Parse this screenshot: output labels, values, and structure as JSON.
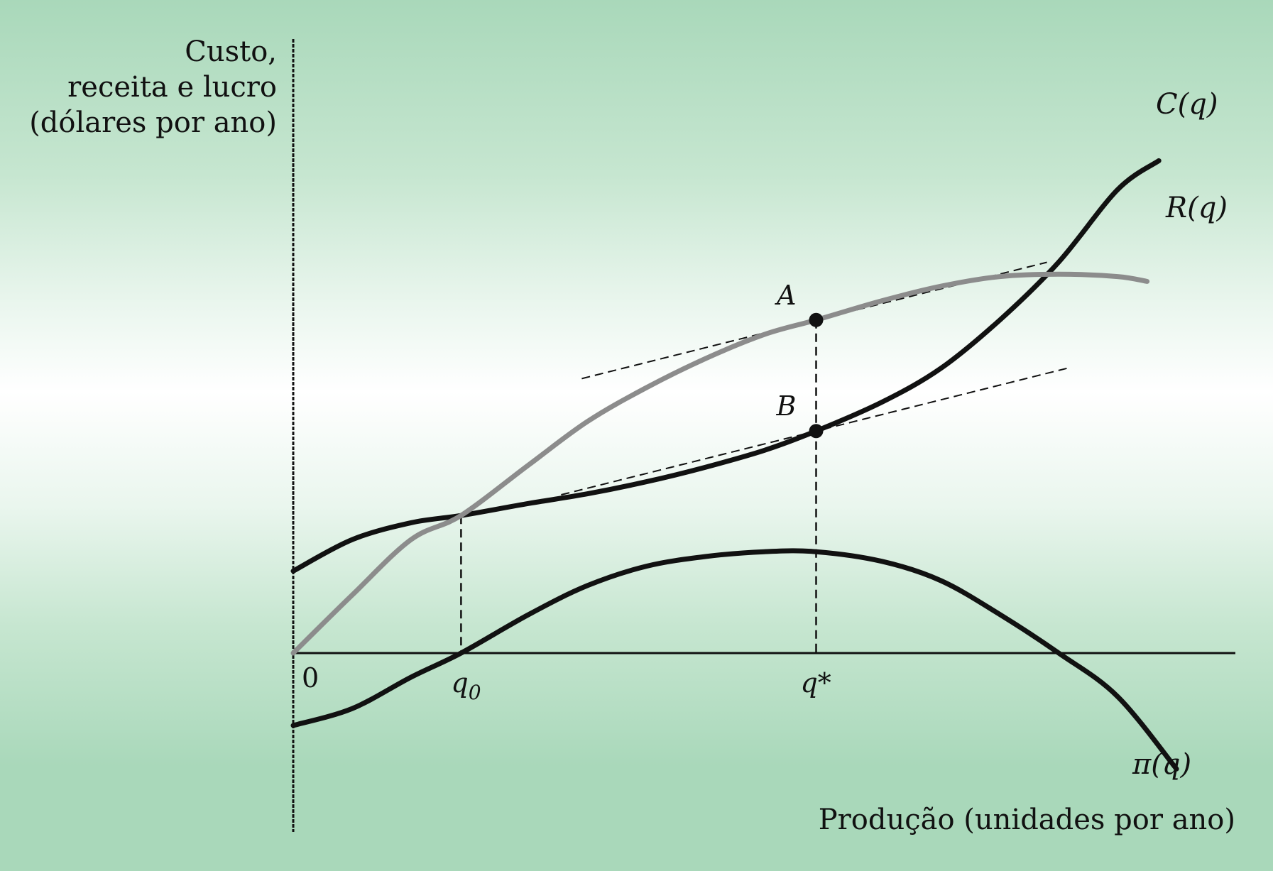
{
  "chart_data": {
    "type": "line",
    "ylabel_lines": [
      "Custo,",
      "receita e lucro",
      "(dólares por ano)"
    ],
    "xlabel": "Produção (unidades por ano)",
    "origin_label": "0",
    "ticks": [
      {
        "label": "q",
        "sub": "0",
        "x": 2.85
      },
      {
        "label": "q*",
        "sub": "",
        "x": 8.88
      }
    ],
    "xlim": [
      0,
      16
    ],
    "ylim": [
      -3,
      10.4
    ],
    "series": [
      {
        "name": "R(q)",
        "color": "#8c8c8c",
        "points": [
          [
            0,
            0
          ],
          [
            1,
            1.2
          ],
          [
            2,
            2.35
          ],
          [
            2.85,
            2.85
          ],
          [
            4,
            3.9
          ],
          [
            5,
            4.8
          ],
          [
            6,
            5.5
          ],
          [
            7,
            6.1
          ],
          [
            8,
            6.6
          ],
          [
            8.88,
            6.9
          ],
          [
            10,
            7.3
          ],
          [
            11,
            7.6
          ],
          [
            12,
            7.8
          ],
          [
            13,
            7.85
          ],
          [
            14,
            7.8
          ],
          [
            14.5,
            7.7
          ]
        ]
      },
      {
        "name": "C(q)",
        "color": "#111111",
        "points": [
          [
            0,
            1.7
          ],
          [
            1,
            2.35
          ],
          [
            2,
            2.7
          ],
          [
            2.85,
            2.85
          ],
          [
            4,
            3.1
          ],
          [
            5,
            3.3
          ],
          [
            6,
            3.55
          ],
          [
            7,
            3.85
          ],
          [
            8,
            4.2
          ],
          [
            8.88,
            4.6
          ],
          [
            10,
            5.2
          ],
          [
            11,
            5.9
          ],
          [
            12,
            6.9
          ],
          [
            13,
            8.1
          ],
          [
            14,
            9.6
          ],
          [
            14.7,
            10.2
          ]
        ]
      },
      {
        "name": "π(q)",
        "color": "#111111",
        "points": [
          [
            0,
            -1.5
          ],
          [
            1,
            -1.15
          ],
          [
            2,
            -0.5
          ],
          [
            2.85,
            0
          ],
          [
            4,
            0.8
          ],
          [
            5,
            1.4
          ],
          [
            6,
            1.8
          ],
          [
            7,
            2.0
          ],
          [
            8,
            2.1
          ],
          [
            8.88,
            2.1
          ],
          [
            10,
            1.9
          ],
          [
            11,
            1.5
          ],
          [
            12,
            0.8
          ],
          [
            13,
            0
          ],
          [
            14,
            -0.9
          ],
          [
            15,
            -2.4
          ]
        ]
      }
    ],
    "points": [
      {
        "label": "A",
        "x": 8.88,
        "y": 6.9
      },
      {
        "label": "B",
        "x": 8.88,
        "y": 4.6
      }
    ],
    "tangents": [
      {
        "through": "A",
        "x_range": [
          4.9,
          12.8
        ],
        "slope": 0.305
      },
      {
        "through": "B",
        "x_range": [
          4.55,
          13.2
        ],
        "slope": 0.305
      }
    ],
    "grid": false,
    "legend": "none"
  }
}
